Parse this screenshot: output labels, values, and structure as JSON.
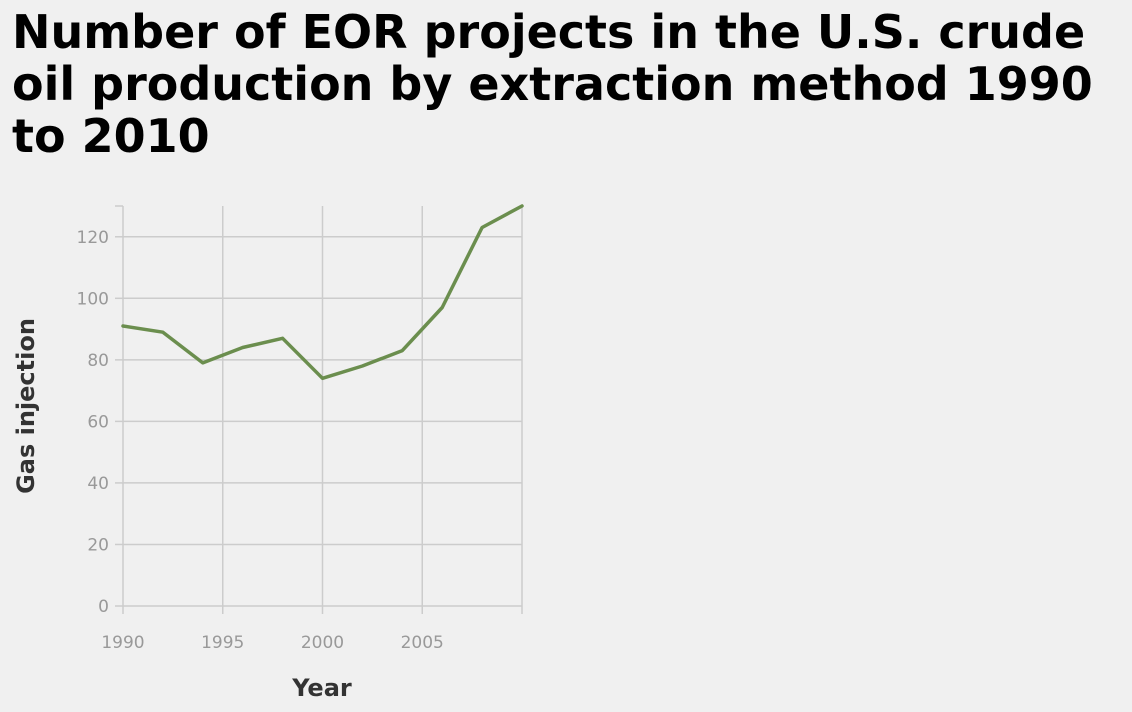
{
  "chart_data": {
    "type": "line",
    "title": "Number of EOR projects in the U.S. crude oil production by extraction method 1990 to 2010",
    "xlabel": "Year",
    "ylabel": "Gas injection",
    "xlim": [
      1990,
      2010
    ],
    "ylim": [
      0,
      130
    ],
    "x_ticks": [
      1990,
      1995,
      2000,
      2005
    ],
    "y_ticks": [
      0,
      20,
      40,
      60,
      80,
      100,
      120
    ],
    "grid": true,
    "legend": "none",
    "line_color": "#6b8e4e",
    "series": [
      {
        "x": [
          1990,
          1992,
          1994,
          1996,
          1998,
          2000,
          2002,
          2004,
          2006,
          2008,
          2010
        ],
        "y": [
          91,
          89,
          79,
          84,
          87,
          74,
          78,
          83,
          97,
          123,
          130
        ]
      }
    ]
  }
}
